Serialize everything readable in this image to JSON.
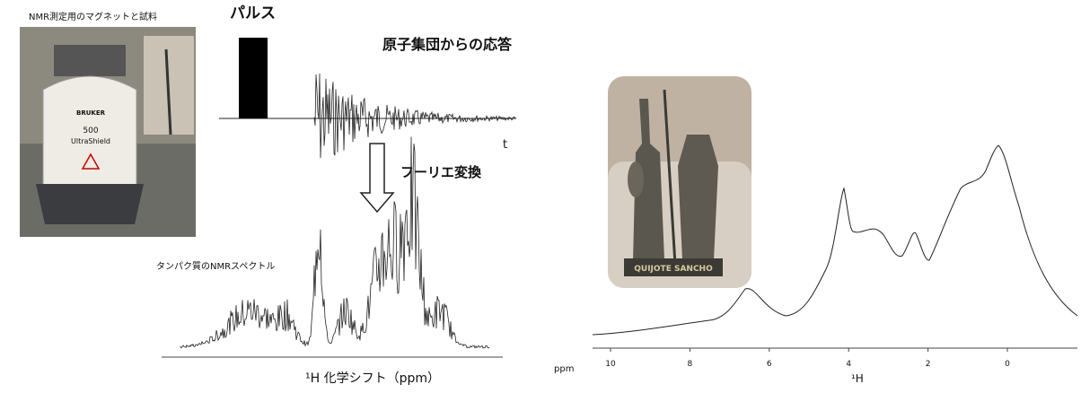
{
  "left_figure": {
    "photo_caption": "NMR測定用のマグネットと試料",
    "magnet_brand": "BRUKER",
    "magnet_model": "500",
    "magnet_name": "UltraShield",
    "pulse_label": "パルス",
    "response_label": "原子集団からの応答",
    "time_label": "t",
    "fourier_label": "フーリエ変換",
    "spectrum_label": "タンパク質のNMRスペクトル",
    "axis_label": "¹H 化学シフト（ppm）"
  },
  "right_figure": {
    "figurine_label": "QUIJOTE SANCHO",
    "axis_unit": "ppm",
    "axis_ticks": [
      "10",
      "8",
      "6",
      "4",
      "2",
      "0"
    ],
    "axis_label": "¹H"
  }
}
